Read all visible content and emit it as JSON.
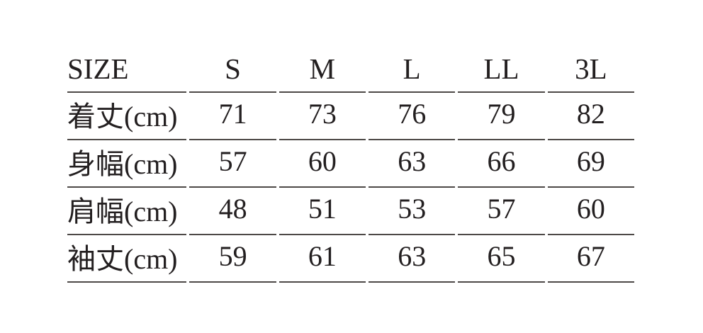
{
  "colors": {
    "background": "#ffffff",
    "text": "#231f20",
    "rule_line": "#4d4947"
  },
  "table": {
    "header": [
      "SIZE",
      "S",
      "M",
      "L",
      "LL",
      "3L"
    ],
    "rows": [
      {
        "label": "着丈(cm)",
        "values": [
          "71",
          "73",
          "76",
          "79",
          "82"
        ]
      },
      {
        "label": "身幅(cm)",
        "values": [
          "57",
          "60",
          "63",
          "66",
          "69"
        ]
      },
      {
        "label": "肩幅(cm)",
        "values": [
          "48",
          "51",
          "53",
          "57",
          "60"
        ]
      },
      {
        "label": "袖丈(cm)",
        "values": [
          "59",
          "61",
          "63",
          "65",
          "67"
        ]
      }
    ]
  },
  "chart_data": {
    "type": "table",
    "title": "",
    "columns": [
      "SIZE",
      "S",
      "M",
      "L",
      "LL",
      "3L"
    ],
    "rows": [
      [
        "着丈(cm)",
        71,
        73,
        76,
        79,
        82
      ],
      [
        "身幅(cm)",
        57,
        60,
        63,
        66,
        69
      ],
      [
        "肩幅(cm)",
        48,
        51,
        53,
        57,
        60
      ],
      [
        "袖丈(cm)",
        59,
        61,
        63,
        65,
        67
      ]
    ],
    "notes": "Garment size chart: row labels are body length (着丈), body width (身幅), shoulder width (肩幅), sleeve length (袖丈), all in cm; columns are sizes S, M, L, LL, 3L"
  }
}
